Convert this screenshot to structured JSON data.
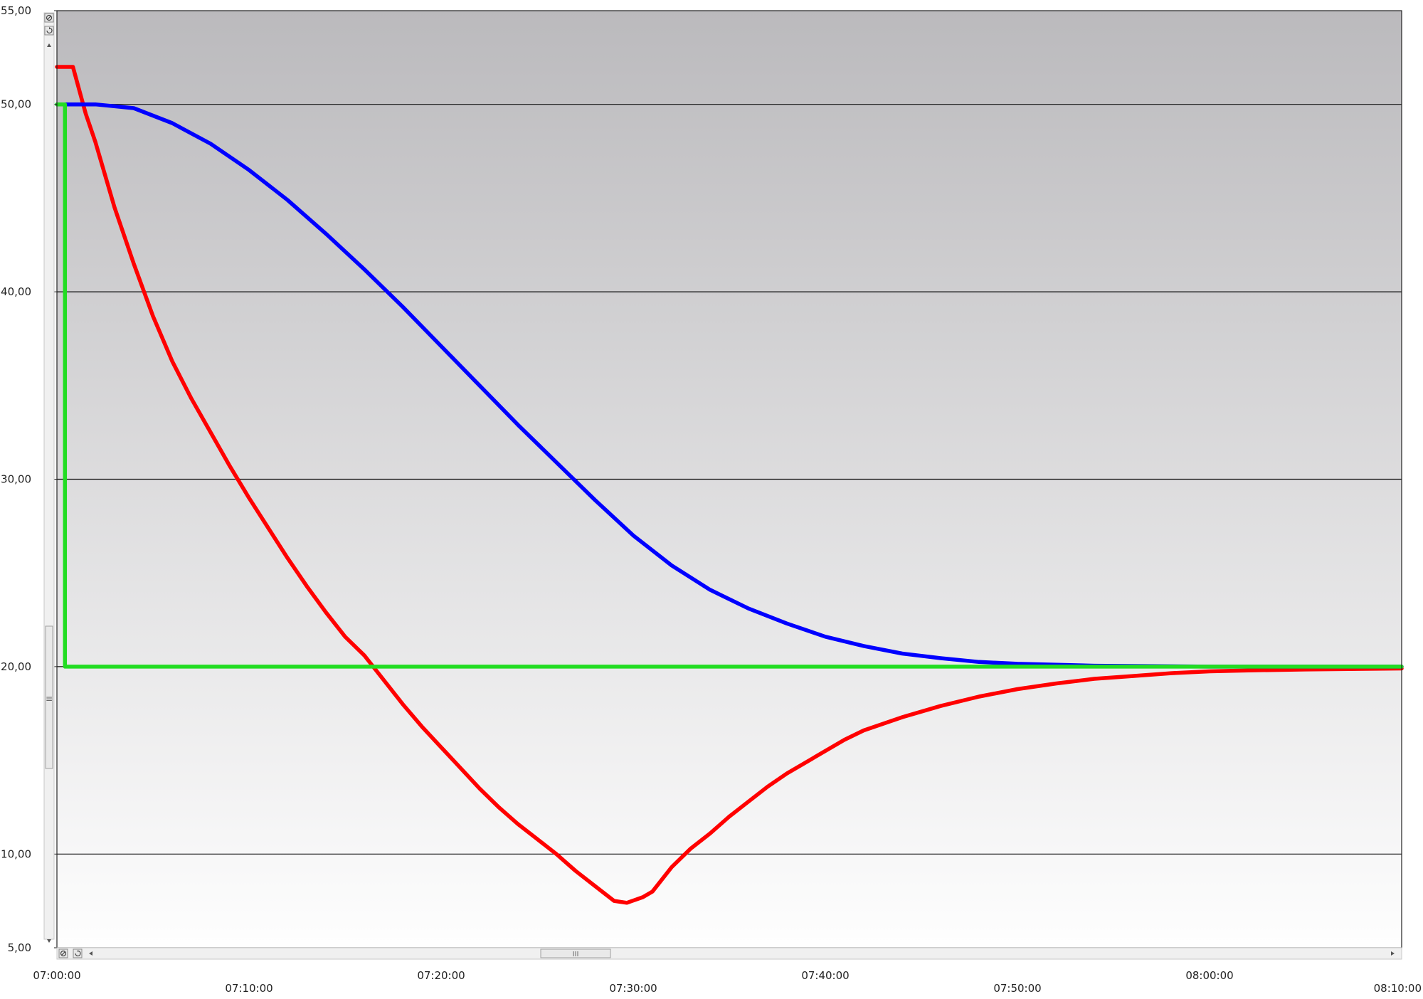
{
  "chart_data": {
    "type": "line",
    "title": "",
    "xlabel": "",
    "ylabel": "",
    "ylim": [
      5,
      55
    ],
    "y_ticks": [
      "55,00",
      "50,00",
      "40,00",
      "30,00",
      "20,00",
      "10,00",
      "5,00"
    ],
    "y_tick_values": [
      55,
      50,
      40,
      30,
      20,
      10,
      5
    ],
    "x_tick_labels": [
      "07:00:00",
      "07:10:00",
      "07:20:00",
      "07:30:00",
      "07:40:00",
      "07:50:00",
      "08:00:00",
      "08:10:00"
    ],
    "x_range": [
      "07:00:00",
      "08:10:00"
    ],
    "grid": true,
    "background": "gradient dark gray (top) to white (bottom)",
    "series": [
      {
        "color": "#ff0000",
        "points": [
          [
            "07:00:00",
            52.0
          ],
          [
            "07:00:50",
            52.0
          ],
          [
            "07:01:30",
            49.5
          ],
          [
            "07:02:00",
            48.0
          ],
          [
            "07:03:00",
            44.5
          ],
          [
            "07:04:00",
            41.5
          ],
          [
            "07:05:00",
            38.7
          ],
          [
            "07:06:00",
            36.3
          ],
          [
            "07:07:00",
            34.3
          ],
          [
            "07:08:00",
            32.5
          ],
          [
            "07:09:00",
            30.7
          ],
          [
            "07:10:00",
            29.0
          ],
          [
            "07:11:00",
            27.4
          ],
          [
            "07:12:00",
            25.8
          ],
          [
            "07:13:00",
            24.3
          ],
          [
            "07:14:00",
            22.9
          ],
          [
            "07:15:00",
            21.6
          ],
          [
            "07:16:00",
            20.6
          ],
          [
            "07:17:00",
            19.3
          ],
          [
            "07:18:00",
            18.0
          ],
          [
            "07:19:00",
            16.8
          ],
          [
            "07:20:00",
            15.7
          ],
          [
            "07:21:00",
            14.6
          ],
          [
            "07:22:00",
            13.5
          ],
          [
            "07:23:00",
            12.5
          ],
          [
            "07:24:00",
            11.6
          ],
          [
            "07:25:00",
            10.8
          ],
          [
            "07:26:00",
            10.0
          ],
          [
            "07:27:00",
            9.1
          ],
          [
            "07:28:00",
            8.3
          ],
          [
            "07:29:00",
            7.5
          ],
          [
            "07:29:40",
            7.4
          ],
          [
            "07:30:30",
            7.7
          ],
          [
            "07:31:00",
            8.0
          ],
          [
            "07:32:00",
            9.3
          ],
          [
            "07:33:00",
            10.3
          ],
          [
            "07:34:00",
            11.1
          ],
          [
            "07:35:00",
            12.0
          ],
          [
            "07:36:00",
            12.8
          ],
          [
            "07:37:00",
            13.6
          ],
          [
            "07:38:00",
            14.3
          ],
          [
            "07:39:00",
            14.9
          ],
          [
            "07:40:00",
            15.5
          ],
          [
            "07:41:00",
            16.1
          ],
          [
            "07:42:00",
            16.6
          ],
          [
            "07:44:00",
            17.3
          ],
          [
            "07:46:00",
            17.9
          ],
          [
            "07:48:00",
            18.4
          ],
          [
            "07:50:00",
            18.8
          ],
          [
            "07:52:00",
            19.1
          ],
          [
            "07:54:00",
            19.35
          ],
          [
            "07:56:00",
            19.5
          ],
          [
            "07:58:00",
            19.65
          ],
          [
            "08:00:00",
            19.75
          ],
          [
            "08:02:00",
            19.8
          ],
          [
            "08:05:00",
            19.85
          ],
          [
            "08:10:00",
            19.9
          ]
        ]
      },
      {
        "color": "#0000ff",
        "points": [
          [
            "07:00:00",
            50.0
          ],
          [
            "07:02:00",
            50.0
          ],
          [
            "07:04:00",
            49.8
          ],
          [
            "07:06:00",
            49.0
          ],
          [
            "07:08:00",
            47.9
          ],
          [
            "07:10:00",
            46.5
          ],
          [
            "07:12:00",
            44.9
          ],
          [
            "07:14:00",
            43.1
          ],
          [
            "07:16:00",
            41.2
          ],
          [
            "07:18:00",
            39.2
          ],
          [
            "07:20:00",
            37.1
          ],
          [
            "07:22:00",
            35.0
          ],
          [
            "07:24:00",
            32.9
          ],
          [
            "07:26:00",
            30.9
          ],
          [
            "07:28:00",
            28.9
          ],
          [
            "07:30:00",
            27.0
          ],
          [
            "07:32:00",
            25.4
          ],
          [
            "07:34:00",
            24.1
          ],
          [
            "07:36:00",
            23.1
          ],
          [
            "07:38:00",
            22.3
          ],
          [
            "07:40:00",
            21.6
          ],
          [
            "07:42:00",
            21.1
          ],
          [
            "07:44:00",
            20.7
          ],
          [
            "07:46:00",
            20.45
          ],
          [
            "07:48:00",
            20.25
          ],
          [
            "07:50:00",
            20.15
          ],
          [
            "07:54:00",
            20.05
          ],
          [
            "08:00:00",
            20.0
          ],
          [
            "08:10:00",
            20.0
          ]
        ]
      },
      {
        "color": "#22dd22",
        "points": [
          [
            "07:00:00",
            50.0
          ],
          [
            "07:00:25",
            50.0
          ],
          [
            "07:00:25",
            20.0
          ],
          [
            "08:10:00",
            20.0
          ]
        ]
      }
    ]
  },
  "scroll_controls": {
    "vertical_grip": "≡",
    "horizontal_grip": "III"
  }
}
